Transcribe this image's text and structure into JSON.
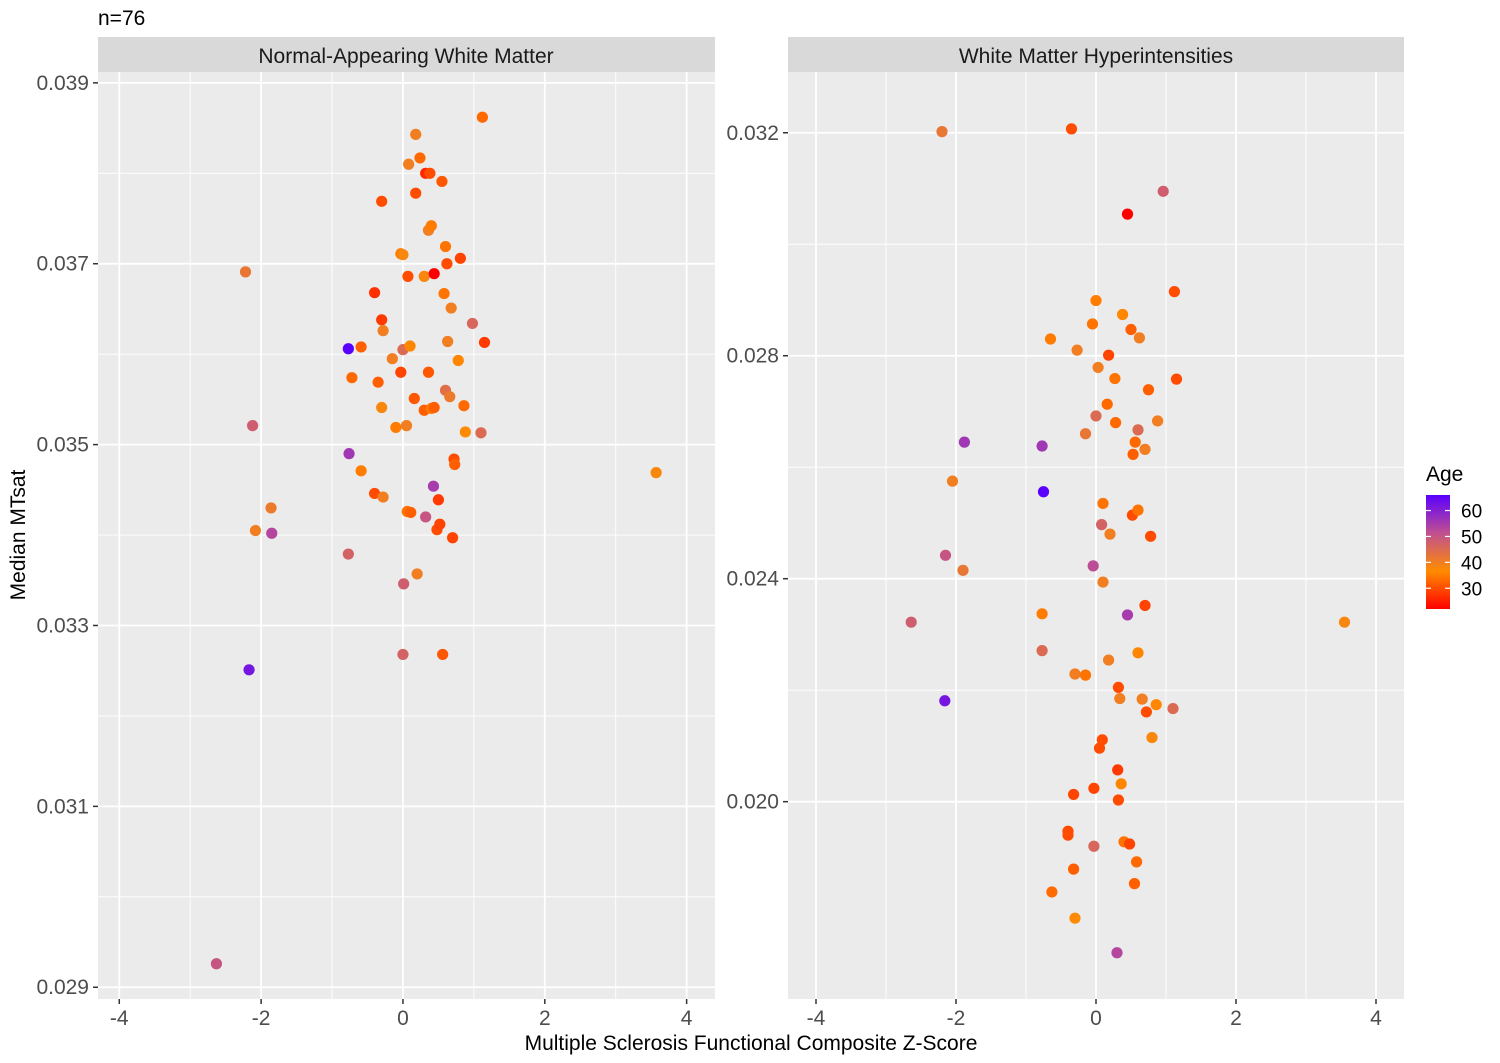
{
  "chart_data": {
    "type": "scatter",
    "title": "n=76",
    "xlabel": "Multiple Sclerosis Functional Composite Z-Score",
    "ylabel": "Median MTsat",
    "legend": {
      "title": "Age",
      "position": "right",
      "gradient": [
        "#FF0000",
        "#FF8C00",
        "#C05090",
        "#5A00FF"
      ],
      "range": [
        22,
        66
      ],
      "ticks": [
        30,
        40,
        50,
        60
      ]
    },
    "panels": [
      {
        "name": "Normal-Appearing White Matter",
        "xlim": [
          -4.3,
          4.4
        ],
        "ylim": [
          0.02887,
          0.03912
        ],
        "x_ticks": [
          -4,
          -2,
          0,
          2,
          4
        ],
        "x_tick_labels": [
          "-4",
          "-2",
          "0",
          "2",
          "4"
        ],
        "y_ticks": [
          0.029,
          0.031,
          0.033,
          0.035,
          0.037,
          0.039
        ],
        "y_tick_labels": [
          "0.029",
          "0.031",
          "0.033",
          "0.035",
          "0.037",
          "0.039"
        ],
        "points": [
          [
            -2.63,
            0.02926,
            50
          ],
          [
            -2.17,
            0.03251,
            62
          ],
          [
            -2.12,
            0.03521,
            48
          ],
          [
            -2.08,
            0.03405,
            40
          ],
          [
            -2.22,
            0.03691,
            42
          ],
          [
            -1.86,
            0.0343,
            41
          ],
          [
            -1.85,
            0.03402,
            53
          ],
          [
            -0.77,
            0.03606,
            66
          ],
          [
            -0.76,
            0.0349,
            56
          ],
          [
            -0.77,
            0.03379,
            47
          ],
          [
            -0.72,
            0.03574,
            33
          ],
          [
            -0.59,
            0.03608,
            32
          ],
          [
            -0.59,
            0.03471,
            35
          ],
          [
            -0.4,
            0.03668,
            27
          ],
          [
            -0.4,
            0.03446,
            30
          ],
          [
            -0.35,
            0.03569,
            32
          ],
          [
            -0.3,
            0.03638,
            28
          ],
          [
            -0.3,
            0.03541,
            38
          ],
          [
            -0.28,
            0.03442,
            40
          ],
          [
            -0.28,
            0.03626,
            40
          ],
          [
            -0.3,
            0.03769,
            30
          ],
          [
            -0.15,
            0.03595,
            40
          ],
          [
            -0.1,
            0.03519,
            35
          ],
          [
            -0.03,
            0.0358,
            29
          ],
          [
            -0.03,
            0.03711,
            35
          ],
          [
            0.0,
            0.0371,
            38
          ],
          [
            0.0,
            0.03605,
            45
          ],
          [
            0.01,
            0.03346,
            48
          ],
          [
            0.0,
            0.03268,
            47
          ],
          [
            0.05,
            0.03521,
            40
          ],
          [
            0.06,
            0.03426,
            34
          ],
          [
            0.07,
            0.03686,
            30
          ],
          [
            0.08,
            0.0381,
            40
          ],
          [
            0.1,
            0.03609,
            36
          ],
          [
            0.11,
            0.03425,
            32
          ],
          [
            0.16,
            0.03551,
            31
          ],
          [
            0.18,
            0.03843,
            40
          ],
          [
            0.18,
            0.03778,
            30
          ],
          [
            0.2,
            0.03357,
            40
          ],
          [
            0.24,
            0.03817,
            33
          ],
          [
            0.3,
            0.03538,
            32
          ],
          [
            0.3,
            0.03686,
            38
          ],
          [
            0.32,
            0.0342,
            50
          ],
          [
            0.32,
            0.038,
            26
          ],
          [
            0.36,
            0.0358,
            31
          ],
          [
            0.36,
            0.03737,
            40
          ],
          [
            0.38,
            0.038,
            30
          ],
          [
            0.4,
            0.03742,
            35
          ],
          [
            0.4,
            0.0354,
            35
          ],
          [
            0.43,
            0.03454,
            55
          ],
          [
            0.44,
            0.03689,
            22
          ],
          [
            0.44,
            0.03541,
            32
          ],
          [
            0.48,
            0.03406,
            30
          ],
          [
            0.5,
            0.03439,
            28
          ],
          [
            0.52,
            0.03412,
            29
          ],
          [
            0.55,
            0.03791,
            31
          ],
          [
            0.56,
            0.03268,
            31
          ],
          [
            0.58,
            0.03667,
            34
          ],
          [
            0.6,
            0.0356,
            44
          ],
          [
            0.6,
            0.03719,
            34
          ],
          [
            0.62,
            0.037,
            30
          ],
          [
            0.63,
            0.03614,
            40
          ],
          [
            0.66,
            0.03553,
            41
          ],
          [
            0.68,
            0.03651,
            40
          ],
          [
            0.7,
            0.03397,
            29
          ],
          [
            0.72,
            0.03484,
            30
          ],
          [
            0.73,
            0.03478,
            32
          ],
          [
            0.78,
            0.03593,
            36
          ],
          [
            0.81,
            0.03706,
            29
          ],
          [
            0.86,
            0.03543,
            33
          ],
          [
            0.88,
            0.03514,
            37
          ],
          [
            0.98,
            0.03634,
            46
          ],
          [
            1.1,
            0.03513,
            45
          ],
          [
            1.12,
            0.03862,
            33
          ],
          [
            1.15,
            0.03613,
            28
          ],
          [
            3.57,
            0.03469,
            38
          ]
        ]
      },
      {
        "name": "White Matter Hyperintensities",
        "xlim": [
          -4.4,
          4.4
        ],
        "ylim": [
          0.01646,
          0.03309
        ],
        "x_ticks": [
          -4,
          -2,
          0,
          2,
          4
        ],
        "x_tick_labels": [
          "-4",
          "-2",
          "0",
          "2",
          "4"
        ],
        "y_ticks": [
          0.02,
          0.024,
          0.028,
          0.032
        ],
        "y_tick_labels": [
          "0.020",
          "0.024",
          "0.028",
          "0.032"
        ],
        "points": [
          [
            -2.64,
            0.02322,
            48
          ],
          [
            -2.2,
            0.03202,
            42
          ],
          [
            -2.16,
            0.02181,
            62
          ],
          [
            -2.15,
            0.02442,
            50
          ],
          [
            -2.05,
            0.02575,
            40
          ],
          [
            -1.9,
            0.02415,
            42
          ],
          [
            -1.88,
            0.02645,
            56
          ],
          [
            -0.77,
            0.02638,
            56
          ],
          [
            -0.75,
            0.02556,
            66
          ],
          [
            -0.77,
            0.02337,
            35
          ],
          [
            -0.77,
            0.02271,
            45
          ],
          [
            -0.65,
            0.0283,
            35
          ],
          [
            -0.63,
            0.01838,
            33
          ],
          [
            -0.4,
            0.01947,
            30
          ],
          [
            -0.4,
            0.0194,
            30
          ],
          [
            -0.35,
            0.03207,
            30
          ],
          [
            -0.32,
            0.01879,
            32
          ],
          [
            -0.32,
            0.02013,
            29
          ],
          [
            -0.3,
            0.01791,
            37
          ],
          [
            -0.3,
            0.02229,
            40
          ],
          [
            -0.27,
            0.0281,
            40
          ],
          [
            -0.15,
            0.02227,
            34
          ],
          [
            -0.15,
            0.0266,
            42
          ],
          [
            -0.05,
            0.02857,
            34
          ],
          [
            -0.04,
            0.02423,
            52
          ],
          [
            -0.03,
            0.02024,
            29
          ],
          [
            -0.03,
            0.0192,
            46
          ],
          [
            0.0,
            0.02899,
            35
          ],
          [
            0.0,
            0.02692,
            45
          ],
          [
            0.03,
            0.02779,
            40
          ],
          [
            0.05,
            0.02096,
            30
          ],
          [
            0.08,
            0.02497,
            47
          ],
          [
            0.09,
            0.02111,
            30
          ],
          [
            0.1,
            0.02535,
            34
          ],
          [
            0.1,
            0.02394,
            40
          ],
          [
            0.16,
            0.02713,
            33
          ],
          [
            0.18,
            0.02801,
            29
          ],
          [
            0.18,
            0.02254,
            40
          ],
          [
            0.2,
            0.0248,
            40
          ],
          [
            0.27,
            0.02759,
            34
          ],
          [
            0.28,
            0.0268,
            33
          ],
          [
            0.3,
            0.01729,
            53
          ],
          [
            0.31,
            0.02057,
            28
          ],
          [
            0.32,
            0.02205,
            30
          ],
          [
            0.32,
            0.02003,
            30
          ],
          [
            0.34,
            0.02185,
            40
          ],
          [
            0.36,
            0.02032,
            36
          ],
          [
            0.38,
            0.02874,
            36
          ],
          [
            0.4,
            0.01928,
            34
          ],
          [
            0.45,
            0.02335,
            55
          ],
          [
            0.45,
            0.03054,
            22
          ],
          [
            0.48,
            0.01924,
            29
          ],
          [
            0.5,
            0.02847,
            32
          ],
          [
            0.52,
            0.02514,
            30
          ],
          [
            0.53,
            0.02623,
            32
          ],
          [
            0.55,
            0.01853,
            32
          ],
          [
            0.56,
            0.02645,
            33
          ],
          [
            0.58,
            0.01892,
            33
          ],
          [
            0.6,
            0.02523,
            34
          ],
          [
            0.6,
            0.02667,
            45
          ],
          [
            0.6,
            0.02267,
            36
          ],
          [
            0.62,
            0.02832,
            40
          ],
          [
            0.66,
            0.02184,
            40
          ],
          [
            0.7,
            0.02632,
            40
          ],
          [
            0.7,
            0.02352,
            29
          ],
          [
            0.72,
            0.02161,
            30
          ],
          [
            0.75,
            0.02739,
            32
          ],
          [
            0.78,
            0.02476,
            30
          ],
          [
            0.8,
            0.02115,
            38
          ],
          [
            0.86,
            0.02174,
            36
          ],
          [
            0.88,
            0.02683,
            40
          ],
          [
            0.96,
            0.03095,
            48
          ],
          [
            1.1,
            0.02167,
            45
          ],
          [
            1.12,
            0.02915,
            30
          ],
          [
            1.15,
            0.02758,
            30
          ],
          [
            3.55,
            0.02322,
            38
          ]
        ]
      }
    ]
  }
}
